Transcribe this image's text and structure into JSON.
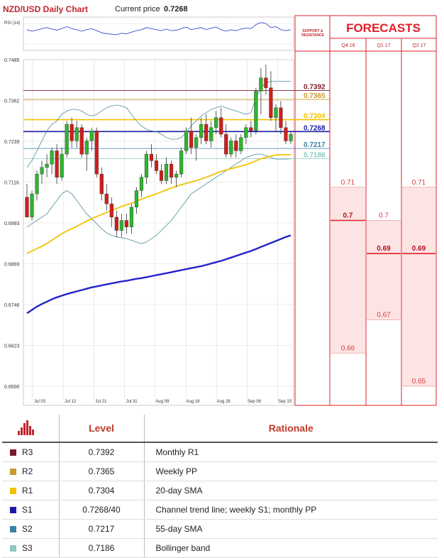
{
  "header": {
    "title": "NZD/USD Daily Chart",
    "current_price_label": "Current price",
    "current_price": "0.7268",
    "rsi_label": "RSI (14)"
  },
  "forecast_panel": {
    "title": "FORECASTS",
    "sr_title": "SUPPORT & RESISTANCE",
    "columns": [
      "Q4 16",
      "Q1 17",
      "Q2 17"
    ]
  },
  "colors": {
    "R3": "#7b1c2c",
    "R2": "#c79a2d",
    "R1": "#f2c200",
    "S1": "#1a1aa6",
    "S2": "#3b7fa8",
    "S3": "#8fc8c0",
    "sma20": "#f2c200",
    "sma200": "#2323c8",
    "bollinger": "#4a8c99",
    "bull": "#2db52d",
    "bear": "#d01d1d",
    "forecast": "#e0202a"
  },
  "chart_data": {
    "type": "candlestick",
    "title": "NZD/USD Daily Chart",
    "ylim": [
      0.65,
      0.7485
    ],
    "y_ticks": [
      "0.7485",
      "0.7362",
      "0.7239",
      "0.7116",
      "0.6993",
      "0.6869",
      "0.6746",
      "0.6623",
      "0.6500"
    ],
    "x_ticks": [
      "Jul 03",
      "Jul 12",
      "Jul 21",
      "Jul 31",
      "Aug 09",
      "Aug 18",
      "Aug 28",
      "Sep 06",
      "Sep 15"
    ],
    "candles": [
      {
        "o": 0.707,
        "h": 0.711,
        "l": 0.701,
        "c": 0.701
      },
      {
        "o": 0.701,
        "h": 0.709,
        "l": 0.7,
        "c": 0.708
      },
      {
        "o": 0.708,
        "h": 0.715,
        "l": 0.706,
        "c": 0.714
      },
      {
        "o": 0.714,
        "h": 0.718,
        "l": 0.711,
        "c": 0.716
      },
      {
        "o": 0.716,
        "h": 0.72,
        "l": 0.713,
        "c": 0.717
      },
      {
        "o": 0.717,
        "h": 0.722,
        "l": 0.714,
        "c": 0.721
      },
      {
        "o": 0.721,
        "h": 0.723,
        "l": 0.711,
        "c": 0.713
      },
      {
        "o": 0.713,
        "h": 0.722,
        "l": 0.712,
        "c": 0.72
      },
      {
        "o": 0.72,
        "h": 0.73,
        "l": 0.719,
        "c": 0.729
      },
      {
        "o": 0.729,
        "h": 0.731,
        "l": 0.722,
        "c": 0.724
      },
      {
        "o": 0.724,
        "h": 0.73,
        "l": 0.722,
        "c": 0.728
      },
      {
        "o": 0.728,
        "h": 0.729,
        "l": 0.719,
        "c": 0.72
      },
      {
        "o": 0.72,
        "h": 0.725,
        "l": 0.715,
        "c": 0.724
      },
      {
        "o": 0.724,
        "h": 0.728,
        "l": 0.721,
        "c": 0.727
      },
      {
        "o": 0.727,
        "h": 0.728,
        "l": 0.713,
        "c": 0.714
      },
      {
        "o": 0.714,
        "h": 0.716,
        "l": 0.706,
        "c": 0.708
      },
      {
        "o": 0.708,
        "h": 0.711,
        "l": 0.703,
        "c": 0.705
      },
      {
        "o": 0.705,
        "h": 0.707,
        "l": 0.698,
        "c": 0.701
      },
      {
        "o": 0.701,
        "h": 0.703,
        "l": 0.695,
        "c": 0.697
      },
      {
        "o": 0.697,
        "h": 0.702,
        "l": 0.695,
        "c": 0.7
      },
      {
        "o": 0.7,
        "h": 0.702,
        "l": 0.696,
        "c": 0.698
      },
      {
        "o": 0.698,
        "h": 0.705,
        "l": 0.696,
        "c": 0.704
      },
      {
        "o": 0.704,
        "h": 0.71,
        "l": 0.702,
        "c": 0.709
      },
      {
        "o": 0.709,
        "h": 0.714,
        "l": 0.707,
        "c": 0.713
      },
      {
        "o": 0.713,
        "h": 0.721,
        "l": 0.711,
        "c": 0.72
      },
      {
        "o": 0.72,
        "h": 0.723,
        "l": 0.716,
        "c": 0.718
      },
      {
        "o": 0.718,
        "h": 0.72,
        "l": 0.714,
        "c": 0.715
      },
      {
        "o": 0.715,
        "h": 0.717,
        "l": 0.711,
        "c": 0.712
      },
      {
        "o": 0.712,
        "h": 0.719,
        "l": 0.711,
        "c": 0.717
      },
      {
        "o": 0.717,
        "h": 0.718,
        "l": 0.711,
        "c": 0.713
      },
      {
        "o": 0.713,
        "h": 0.715,
        "l": 0.71,
        "c": 0.714
      },
      {
        "o": 0.714,
        "h": 0.722,
        "l": 0.713,
        "c": 0.721
      },
      {
        "o": 0.721,
        "h": 0.728,
        "l": 0.72,
        "c": 0.727
      },
      {
        "o": 0.727,
        "h": 0.731,
        "l": 0.72,
        "c": 0.722
      },
      {
        "o": 0.722,
        "h": 0.726,
        "l": 0.718,
        "c": 0.725
      },
      {
        "o": 0.725,
        "h": 0.731,
        "l": 0.723,
        "c": 0.729
      },
      {
        "o": 0.729,
        "h": 0.732,
        "l": 0.723,
        "c": 0.724
      },
      {
        "o": 0.724,
        "h": 0.73,
        "l": 0.722,
        "c": 0.728
      },
      {
        "o": 0.728,
        "h": 0.733,
        "l": 0.726,
        "c": 0.731
      },
      {
        "o": 0.731,
        "h": 0.734,
        "l": 0.725,
        "c": 0.726
      },
      {
        "o": 0.726,
        "h": 0.729,
        "l": 0.719,
        "c": 0.72
      },
      {
        "o": 0.72,
        "h": 0.725,
        "l": 0.719,
        "c": 0.724
      },
      {
        "o": 0.724,
        "h": 0.726,
        "l": 0.719,
        "c": 0.721
      },
      {
        "o": 0.721,
        "h": 0.726,
        "l": 0.72,
        "c": 0.725
      },
      {
        "o": 0.725,
        "h": 0.729,
        "l": 0.723,
        "c": 0.728
      },
      {
        "o": 0.728,
        "h": 0.73,
        "l": 0.725,
        "c": 0.727
      },
      {
        "o": 0.727,
        "h": 0.74,
        "l": 0.726,
        "c": 0.739
      },
      {
        "o": 0.739,
        "h": 0.746,
        "l": 0.732,
        "c": 0.743
      },
      {
        "o": 0.743,
        "h": 0.747,
        "l": 0.738,
        "c": 0.74
      },
      {
        "o": 0.74,
        "h": 0.745,
        "l": 0.73,
        "c": 0.731
      },
      {
        "o": 0.731,
        "h": 0.735,
        "l": 0.727,
        "c": 0.734
      },
      {
        "o": 0.734,
        "h": 0.736,
        "l": 0.726,
        "c": 0.728
      },
      {
        "o": 0.728,
        "h": 0.73,
        "l": 0.723,
        "c": 0.724
      },
      {
        "o": 0.724,
        "h": 0.727,
        "l": 0.723,
        "c": 0.726
      }
    ],
    "sma20": [
      0.69,
      0.6908,
      0.6915,
      0.6922,
      0.693,
      0.694,
      0.695,
      0.696,
      0.6968,
      0.6975,
      0.6982,
      0.699,
      0.6998,
      0.7005,
      0.7012,
      0.7018,
      0.7024,
      0.703,
      0.7036,
      0.7042,
      0.7047,
      0.7052,
      0.7058,
      0.7064,
      0.707,
      0.7075,
      0.708,
      0.7086,
      0.7092,
      0.7098,
      0.7103,
      0.7108,
      0.7112,
      0.7116,
      0.712,
      0.7125,
      0.713,
      0.7136,
      0.7142,
      0.7148,
      0.7152,
      0.7156,
      0.716,
      0.7164,
      0.7168,
      0.7173,
      0.718,
      0.7186,
      0.719,
      0.7194,
      0.7197,
      0.7198,
      0.7198,
      0.7198
    ],
    "sma200": [
      0.672,
      0.673,
      0.674,
      0.6748,
      0.6755,
      0.6762,
      0.6768,
      0.6773,
      0.6778,
      0.6782,
      0.6786,
      0.679,
      0.6794,
      0.6798,
      0.6801,
      0.6804,
      0.6807,
      0.681,
      0.6813,
      0.6816,
      0.6818,
      0.6821,
      0.6824,
      0.6826,
      0.6829,
      0.6832,
      0.6835,
      0.6838,
      0.6841,
      0.6844,
      0.6847,
      0.685,
      0.6853,
      0.6856,
      0.6859,
      0.6862,
      0.6866,
      0.687,
      0.6874,
      0.6878,
      0.6883,
      0.6888,
      0.6893,
      0.6898,
      0.6903,
      0.6908,
      0.6914,
      0.692,
      0.6926,
      0.6932,
      0.6938,
      0.6944,
      0.695,
      0.6955
    ],
    "bb_upper": [
      0.716,
      0.718,
      0.721,
      0.724,
      0.727,
      0.729,
      0.73,
      0.732,
      0.733,
      0.7335,
      0.7335,
      0.733,
      0.732,
      0.7315,
      0.732,
      0.733,
      0.734,
      0.7345,
      0.7348,
      0.7345,
      0.734,
      0.732,
      0.73,
      0.7285,
      0.7275,
      0.727,
      0.7268,
      0.726,
      0.725,
      0.7245,
      0.7245,
      0.725,
      0.7265,
      0.7285,
      0.73,
      0.7315,
      0.7325,
      0.7335,
      0.734,
      0.7345,
      0.734,
      0.7335,
      0.733,
      0.7325,
      0.732,
      0.7325,
      0.737,
      0.74,
      0.7415,
      0.742,
      0.742,
      0.742,
      0.742,
      0.742
    ],
    "bb_lower": [
      0.698,
      0.699,
      0.7,
      0.701,
      0.702,
      0.704,
      0.706,
      0.708,
      0.709,
      0.708,
      0.706,
      0.704,
      0.702,
      0.7005,
      0.699,
      0.6975,
      0.6962,
      0.6955,
      0.695,
      0.6948,
      0.6945,
      0.694,
      0.6935,
      0.693,
      0.6935,
      0.6945,
      0.6955,
      0.697,
      0.6985,
      0.7,
      0.702,
      0.704,
      0.706,
      0.708,
      0.709,
      0.71,
      0.711,
      0.712,
      0.713,
      0.714,
      0.715,
      0.716,
      0.717,
      0.718,
      0.719,
      0.7195,
      0.72,
      0.72,
      0.7195,
      0.719,
      0.7185,
      0.7185,
      0.7185,
      0.7186
    ],
    "rsi": [
      58,
      55,
      57,
      60,
      62,
      59,
      57,
      60,
      64,
      60,
      58,
      55,
      58,
      60,
      56,
      52,
      50,
      49,
      48,
      51,
      50,
      53,
      56,
      58,
      62,
      60,
      58,
      56,
      59,
      56,
      57,
      60,
      63,
      58,
      60,
      62,
      58,
      61,
      63,
      58,
      55,
      58,
      56,
      59,
      61,
      60,
      68,
      72,
      70,
      62,
      64,
      58,
      56,
      58
    ],
    "levels": [
      {
        "name": "R3",
        "value": "0.7392",
        "y": 0.7392
      },
      {
        "name": "R2",
        "value": "0.7365",
        "y": 0.7365
      },
      {
        "name": "R1",
        "value": "0.7304",
        "y": 0.7304
      },
      {
        "name": "S1",
        "value": "0.7268",
        "y": 0.7268
      },
      {
        "name": "S2",
        "value": "0.7217",
        "y": 0.7217
      },
      {
        "name": "S3",
        "value": "0.7186",
        "y": 0.7186
      }
    ],
    "forecasts": [
      {
        "quarter": "Q4 16",
        "items": [
          {
            "value": 0.71,
            "label": "0.71",
            "bold": false
          },
          {
            "value": 0.7,
            "label": "0.7",
            "bold": true
          },
          {
            "value": 0.66,
            "label": "0.66",
            "bold": false
          }
        ]
      },
      {
        "quarter": "Q1 17",
        "items": [
          {
            "value": 0.7,
            "label": "0.7",
            "bold": false
          },
          {
            "value": 0.69,
            "label": "0.69",
            "bold": true
          },
          {
            "value": 0.67,
            "label": "0.67",
            "bold": false
          }
        ]
      },
      {
        "quarter": "Q2 17",
        "items": [
          {
            "value": 0.71,
            "label": "0.71",
            "bold": false
          },
          {
            "value": 0.69,
            "label": "0.69",
            "bold": true
          },
          {
            "value": 0.65,
            "label": "0.65",
            "bold": false
          }
        ]
      }
    ]
  },
  "levels_table": {
    "headers": {
      "level": "Level",
      "rationale": "Rationale"
    },
    "rows": [
      {
        "name": "R3",
        "value": "0.7392",
        "rationale": "Monthly R1"
      },
      {
        "name": "R2",
        "value": "0.7365",
        "rationale": "Weekly PP"
      },
      {
        "name": "R1",
        "value": "0.7304",
        "rationale": "20-day SMA"
      },
      {
        "name": "S1",
        "value": "0.7268/40",
        "rationale": "Channel trend line; weekly S1; monthly PP"
      },
      {
        "name": "S2",
        "value": "0.7217",
        "rationale": "55-day SMA"
      },
      {
        "name": "S3",
        "value": "0.7186",
        "rationale": "Bollinger band"
      }
    ]
  }
}
